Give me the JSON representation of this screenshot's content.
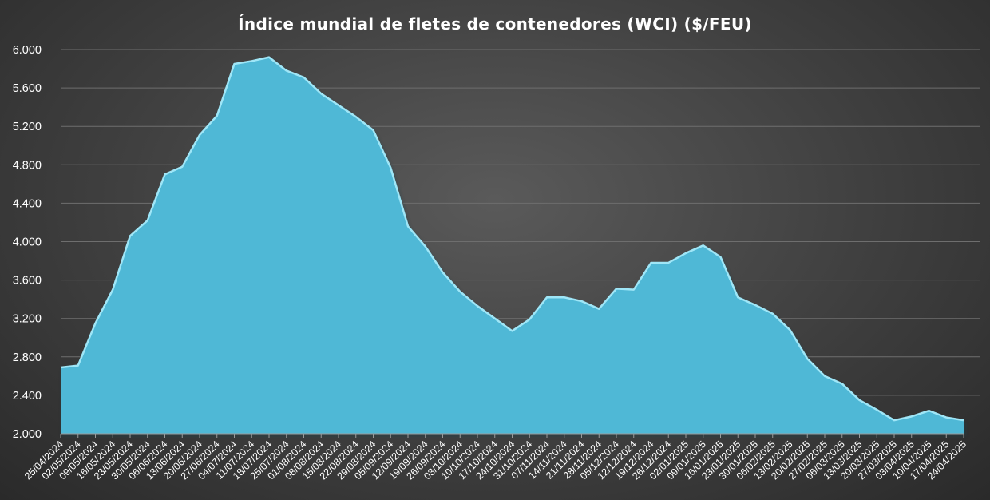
{
  "chart_data": {
    "type": "area",
    "title": "Índice mundial de fletes de contenedores (WCI) ($/FEU)",
    "xlabel": "",
    "ylabel": "",
    "ylim": [
      2000,
      6000
    ],
    "yticks": [
      2000,
      2400,
      2800,
      3200,
      3600,
      4000,
      4400,
      4800,
      5200,
      5600,
      6000
    ],
    "ytick_labels": [
      "2.000",
      "2.400",
      "2.800",
      "3.200",
      "3.600",
      "4.000",
      "4.400",
      "4.800",
      "5.200",
      "5.600",
      "6.000"
    ],
    "grid": true,
    "legend": "none",
    "colors": {
      "fill": "#4fb8d6",
      "line": "#9fe6f7"
    },
    "series": [
      {
        "values": [
          2690,
          2710,
          3150,
          3500,
          4060,
          4220,
          4700,
          4780,
          5110,
          5310,
          5850,
          5880,
          5920,
          5780,
          5710,
          5540,
          5420,
          5300,
          5160,
          4770,
          4160,
          3950,
          3680,
          3480,
          3330,
          3200,
          3070,
          3190,
          3420,
          3420,
          3380,
          3300,
          3510,
          3500,
          3780,
          3780,
          3880,
          3960,
          3840,
          3420,
          3340,
          3250,
          3080,
          2780,
          2600,
          2520,
          2350,
          2250,
          2140,
          2180,
          2240,
          2170,
          2140
        ]
      }
    ],
    "x": [
      "25/04/2024",
      "02/05/2024",
      "09/05/2024",
      "16/05/2024",
      "23/05/2024",
      "30/05/2024",
      "06/06/2024",
      "13/06/2024",
      "20/06/2024",
      "27/06/2024",
      "04/07/2024",
      "11/07/2024",
      "18/07/2024",
      "25/07/2024",
      "01/08/2024",
      "08/08/2024",
      "15/08/2024",
      "22/08/2024",
      "29/08/2024",
      "05/09/2024",
      "12/09/2024",
      "19/09/2024",
      "26/09/2024",
      "03/10/2024",
      "10/10/2024",
      "17/10/2024",
      "24/10/2024",
      "31/10/2024",
      "07/11/2024",
      "14/11/2024",
      "21/11/2024",
      "28/11/2024",
      "05/12/2024",
      "12/12/2024",
      "19/12/2024",
      "26/12/2024",
      "02/01/2025",
      "09/01/2025",
      "16/01/2025",
      "23/01/2025",
      "30/01/2025",
      "06/02/2025",
      "13/02/2025",
      "20/02/2025",
      "27/02/2025",
      "06/03/2025",
      "13/03/2025",
      "20/03/2025",
      "27/03/2025",
      "03/04/2025",
      "10/04/2025",
      "17/04/2025",
      "24/04/2025"
    ]
  }
}
